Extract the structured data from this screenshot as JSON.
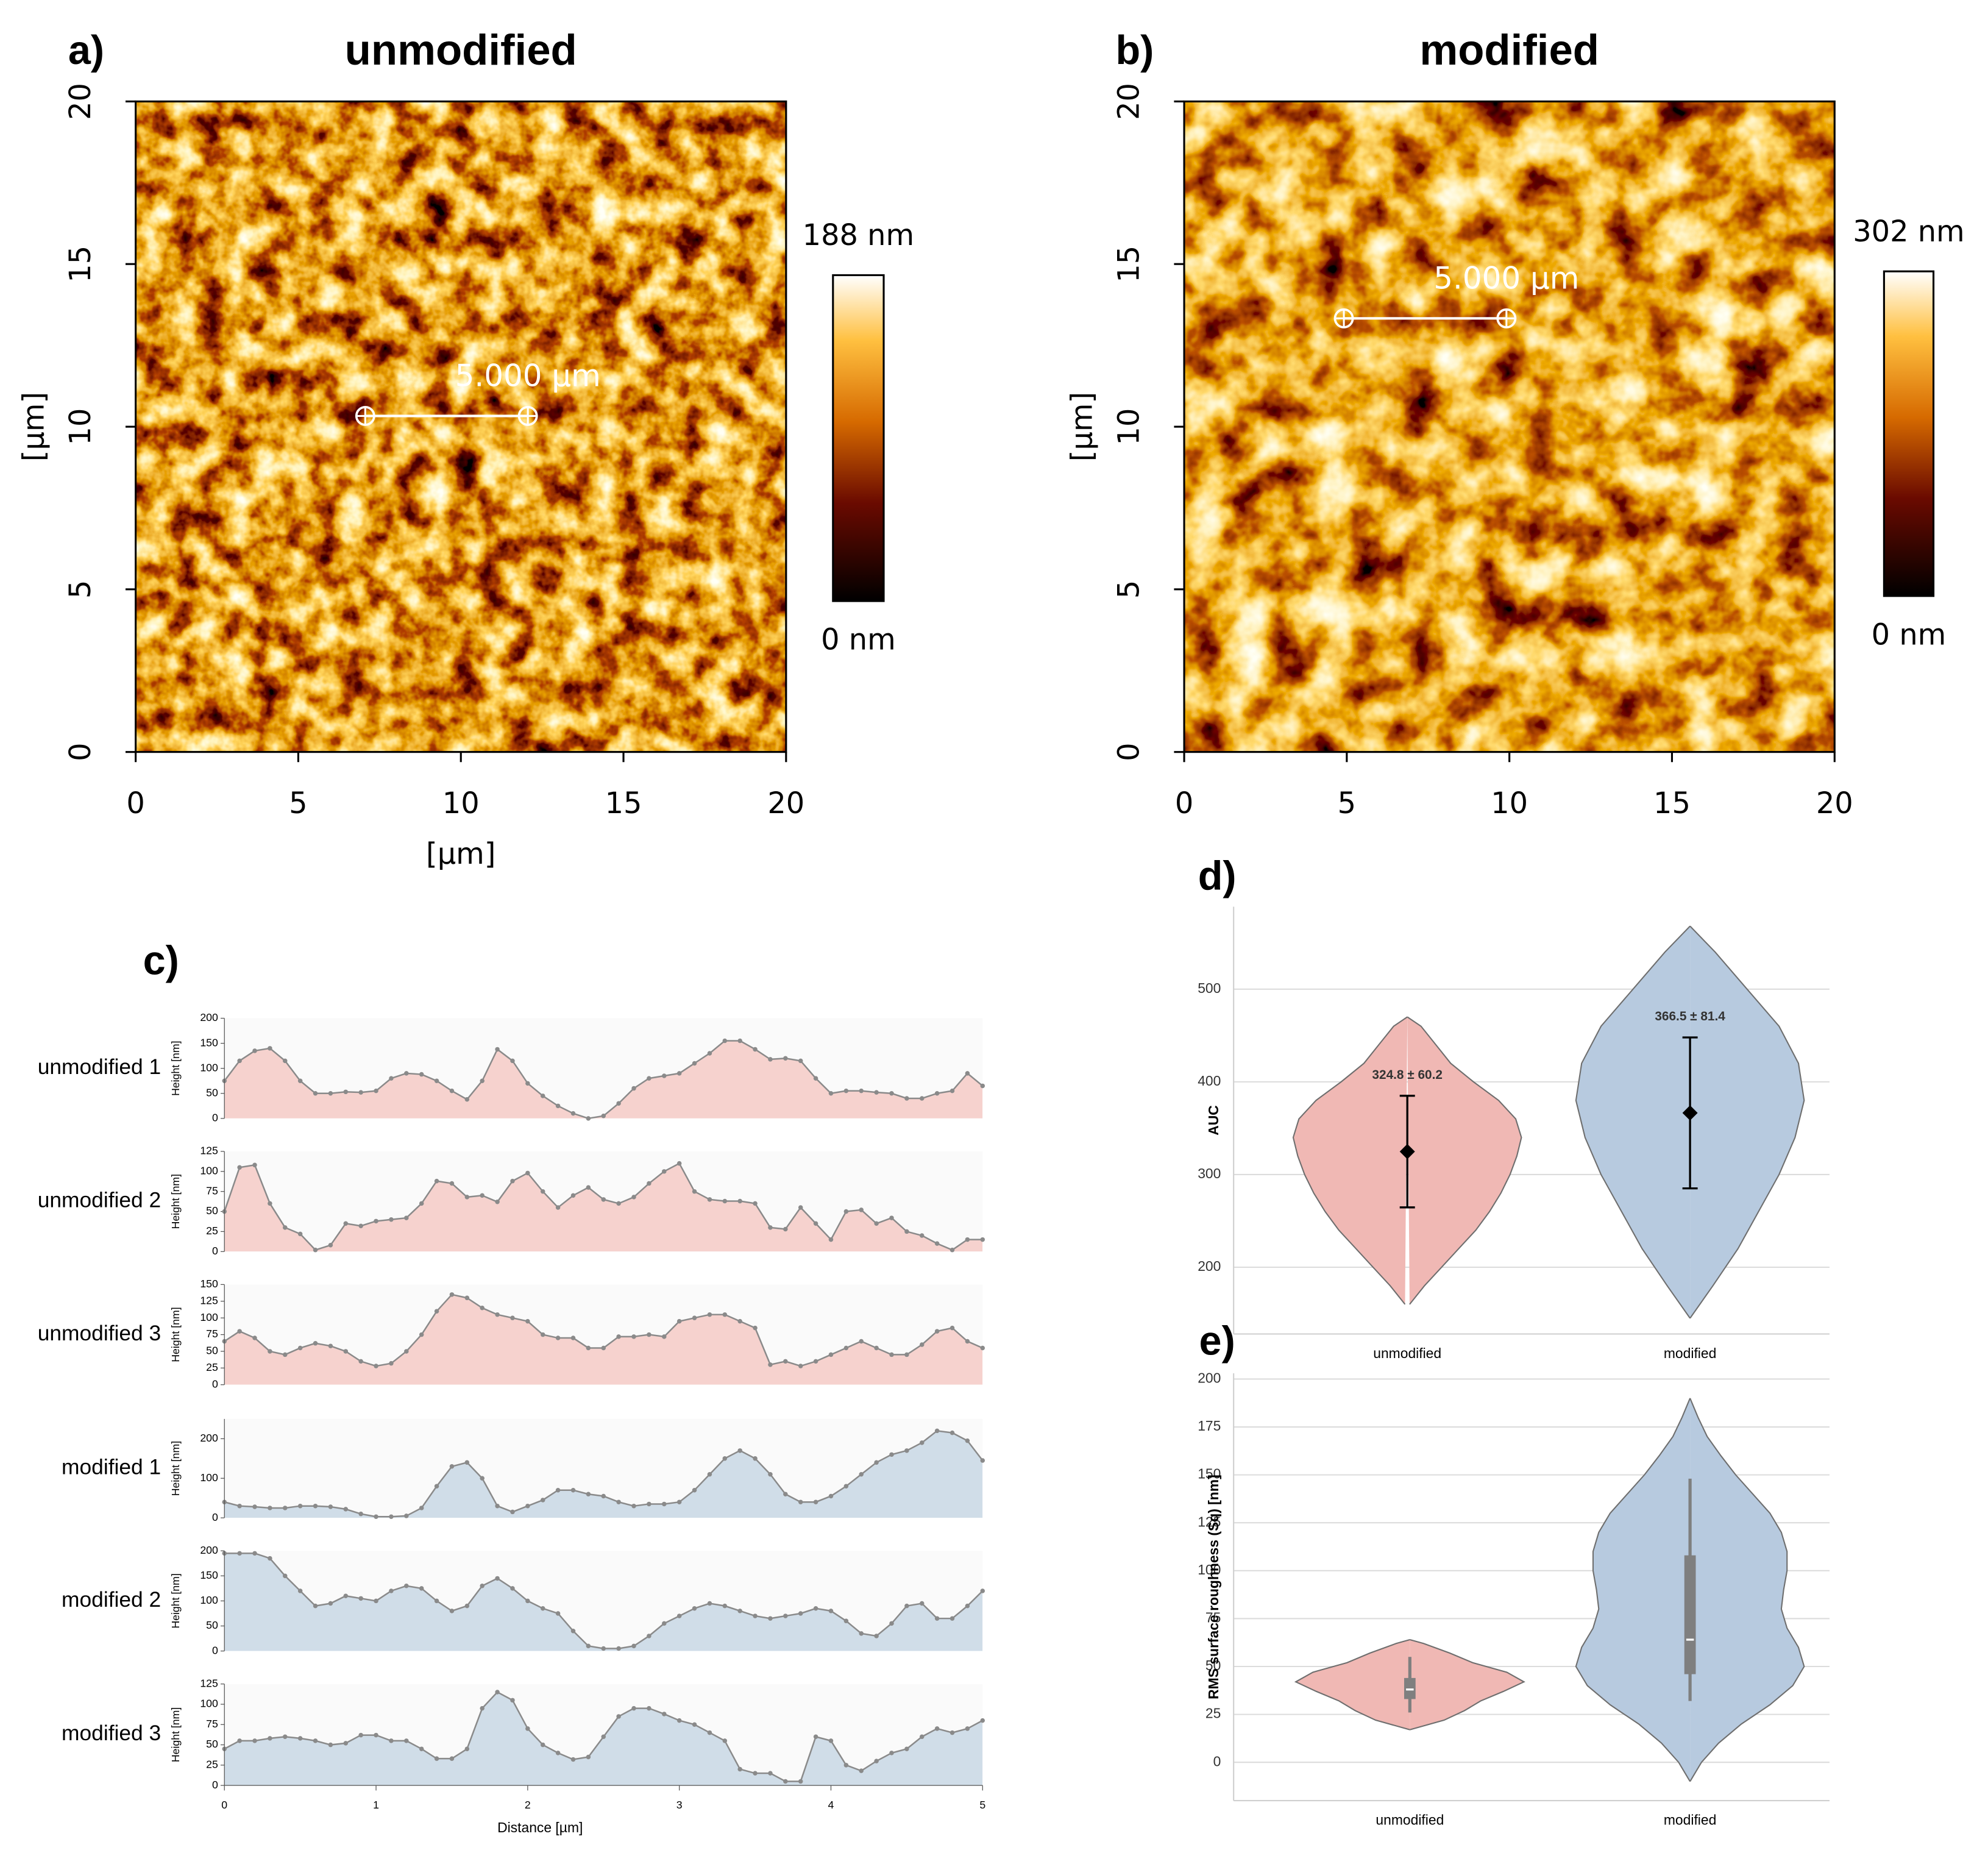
{
  "chart_data": [
    {
      "type": "heatmap",
      "panel_label": "a)",
      "title": "unmodified",
      "xlabel": "[µm]",
      "ylabel": "[µm]",
      "xlim": [
        0,
        20
      ],
      "ylim": [
        0,
        20
      ],
      "xticks": [
        0,
        5,
        10,
        15,
        20
      ],
      "yticks": [
        0,
        5,
        10,
        15,
        20
      ],
      "clim": [
        {
          "value": 0,
          "label": "0 nm"
        },
        {
          "value": 188,
          "label": "188 nm"
        }
      ],
      "scale_bar": {
        "x": 7.06,
        "y": 10.33,
        "length": 5,
        "label": "5.000 µm"
      }
    },
    {
      "type": "heatmap",
      "panel_label": "b)",
      "title": "modified",
      "ylabel": "[µm]",
      "xlim": [
        0,
        20
      ],
      "ylim": [
        0,
        20
      ],
      "xticks": [
        0,
        5,
        10,
        15,
        20
      ],
      "yticks": [
        0,
        5,
        10,
        15,
        20
      ],
      "clim": [
        {
          "value": 0,
          "label": "0 nm"
        },
        {
          "value": 302,
          "label": "302 nm"
        }
      ],
      "scale_bar": {
        "x": 4.91,
        "y": 13.33,
        "length": 5,
        "label": "5.000 µm"
      }
    },
    {
      "type": "area",
      "panel_label": "c)",
      "xlabel": "Distance [µm]",
      "ylabel": "Height [nm]",
      "line_color": "#8a8a8a",
      "xlim": [
        0,
        5
      ],
      "xticks": [
        0,
        1,
        2,
        3,
        4,
        5
      ],
      "x": [
        0,
        0.1,
        0.2,
        0.3,
        0.4,
        0.5,
        0.6,
        0.7,
        0.8,
        0.9,
        1,
        1.1,
        1.2,
        1.3,
        1.4,
        1.5,
        1.6,
        1.7,
        1.8,
        1.9,
        2,
        2.1,
        2.2,
        2.3,
        2.4,
        2.5,
        2.6,
        2.7,
        2.8,
        2.9,
        3,
        3.1,
        3.2,
        3.3,
        3.4,
        3.5,
        3.6,
        3.7,
        3.8,
        3.9,
        4,
        4.1,
        4.2,
        4.3,
        4.4,
        4.5,
        4.6,
        4.7,
        4.8,
        4.9,
        5
      ],
      "series": [
        {
          "name": "unmodified 1",
          "color": "#f6d2ce",
          "ylim": [
            0,
            200
          ],
          "yticks": [
            0,
            50,
            100,
            150,
            200
          ],
          "values": [
            75,
            115,
            135,
            140,
            115,
            75,
            50,
            50,
            53,
            52,
            55,
            80,
            90,
            88,
            75,
            55,
            38,
            75,
            138,
            115,
            70,
            45,
            25,
            10,
            0,
            5,
            30,
            60,
            80,
            85,
            90,
            110,
            130,
            155,
            155,
            138,
            118,
            120,
            115,
            80,
            50,
            55,
            55,
            52,
            50,
            40,
            40,
            50,
            55,
            90,
            65
          ]
        },
        {
          "name": "unmodified 2",
          "color": "#f6d2ce",
          "ylim": [
            0,
            125
          ],
          "yticks": [
            0,
            25,
            50,
            75,
            100,
            125
          ],
          "values": [
            50,
            105,
            108,
            60,
            30,
            22,
            2,
            8,
            35,
            32,
            38,
            40,
            42,
            60,
            88,
            85,
            68,
            70,
            62,
            88,
            98,
            75,
            55,
            70,
            80,
            65,
            60,
            68,
            85,
            100,
            110,
            75,
            65,
            63,
            63,
            60,
            30,
            28,
            55,
            35,
            15,
            50,
            52,
            35,
            42,
            25,
            20,
            10,
            2,
            15,
            15
          ]
        },
        {
          "name": "unmodified 3",
          "color": "#f6d2ce",
          "ylim": [
            0,
            150
          ],
          "yticks": [
            0,
            25,
            50,
            75,
            100,
            125,
            150
          ],
          "values": [
            65,
            80,
            70,
            50,
            45,
            55,
            62,
            58,
            50,
            35,
            28,
            32,
            50,
            75,
            110,
            135,
            130,
            115,
            105,
            100,
            95,
            75,
            70,
            70,
            55,
            55,
            72,
            72,
            75,
            72,
            95,
            100,
            105,
            105,
            95,
            85,
            30,
            35,
            28,
            35,
            45,
            55,
            65,
            55,
            45,
            45,
            60,
            80,
            85,
            65,
            55
          ]
        },
        {
          "name": "modified 1",
          "color": "#d0dde8",
          "ylim": [
            0,
            250
          ],
          "yticks": [
            0,
            100,
            200
          ],
          "values": [
            40,
            30,
            28,
            25,
            25,
            30,
            30,
            28,
            22,
            10,
            3,
            3,
            5,
            25,
            80,
            130,
            140,
            100,
            30,
            15,
            30,
            45,
            70,
            70,
            60,
            55,
            40,
            30,
            35,
            35,
            40,
            70,
            110,
            150,
            170,
            150,
            110,
            60,
            40,
            40,
            55,
            80,
            110,
            140,
            160,
            170,
            190,
            220,
            215,
            195,
            145
          ]
        },
        {
          "name": "modified 2",
          "color": "#d0dde8",
          "ylim": [
            0,
            200
          ],
          "yticks": [
            0,
            50,
            100,
            150,
            200
          ],
          "values": [
            195,
            195,
            195,
            185,
            150,
            120,
            90,
            95,
            110,
            105,
            100,
            120,
            130,
            125,
            100,
            80,
            90,
            130,
            145,
            125,
            100,
            85,
            75,
            40,
            10,
            5,
            5,
            10,
            30,
            55,
            70,
            85,
            95,
            90,
            80,
            70,
            65,
            70,
            75,
            85,
            80,
            60,
            35,
            30,
            55,
            90,
            95,
            65,
            65,
            90,
            120
          ]
        },
        {
          "name": "modified 3",
          "color": "#d0dde8",
          "ylim": [
            0,
            125
          ],
          "yticks": [
            0,
            25,
            50,
            75,
            100,
            125
          ],
          "values": [
            45,
            55,
            55,
            58,
            60,
            58,
            55,
            50,
            52,
            62,
            62,
            55,
            55,
            45,
            33,
            33,
            45,
            95,
            115,
            105,
            70,
            50,
            40,
            32,
            35,
            60,
            85,
            95,
            95,
            88,
            80,
            75,
            65,
            55,
            20,
            15,
            15,
            5,
            5,
            60,
            55,
            25,
            18,
            30,
            40,
            45,
            60,
            70,
            65,
            70,
            80
          ]
        }
      ]
    },
    {
      "type": "violin",
      "panel_label": "d)",
      "ylabel": "AUC",
      "categories": [
        "unmodified",
        "modified"
      ],
      "colors": [
        "#f0b8b4",
        "#b7cadf"
      ],
      "ylim": [
        128,
        589
      ],
      "yticks": [
        200,
        300,
        400,
        500
      ],
      "violins": [
        {
          "levels": [
            160,
            180,
            200,
            220,
            240,
            260,
            280,
            300,
            320,
            340,
            360,
            380,
            400,
            420,
            440,
            460,
            470
          ],
          "widths": [
            0.02,
            0.15,
            0.3,
            0.45,
            0.6,
            0.72,
            0.82,
            0.9,
            0.96,
            1.0,
            0.95,
            0.8,
            0.58,
            0.38,
            0.25,
            0.12,
            0.0
          ]
        },
        {
          "levels": [
            145,
            180,
            220,
            260,
            300,
            340,
            380,
            420,
            460,
            500,
            540,
            568
          ],
          "widths": [
            0.0,
            0.2,
            0.42,
            0.6,
            0.78,
            0.92,
            1.0,
            0.95,
            0.78,
            0.5,
            0.22,
            0.0
          ]
        }
      ],
      "means": [
        324.8,
        366.5
      ],
      "errors": [
        60.2,
        81.4
      ],
      "value_labels": [
        "324.8 ± 60.2",
        "366.5 ± 81.4"
      ]
    },
    {
      "type": "violin",
      "panel_label": "e)",
      "ylabel": "RMS surface roughness (Sq) [nm]",
      "categories": [
        "unmodified",
        "modified"
      ],
      "colors": [
        "#f0b8b4",
        "#b7cadf"
      ],
      "ylim": [
        -20,
        203
      ],
      "yticks": [
        0,
        25,
        50,
        75,
        100,
        125,
        150,
        175,
        200
      ],
      "violins": [
        {
          "levels": [
            17,
            22,
            27,
            32,
            37,
            42,
            47,
            52,
            57,
            62,
            64
          ],
          "widths": [
            0,
            0.3,
            0.48,
            0.62,
            0.82,
            1.0,
            0.85,
            0.55,
            0.35,
            0.12,
            0
          ]
        },
        {
          "levels": [
            -10,
            0,
            10,
            20,
            30,
            40,
            50,
            60,
            70,
            80,
            90,
            100,
            110,
            120,
            130,
            140,
            150,
            160,
            170,
            180,
            190
          ],
          "widths": [
            0,
            0.1,
            0.25,
            0.45,
            0.7,
            0.9,
            1.0,
            0.95,
            0.85,
            0.8,
            0.82,
            0.85,
            0.85,
            0.8,
            0.7,
            0.55,
            0.4,
            0.27,
            0.15,
            0.07,
            0
          ]
        }
      ],
      "boxes": [
        {
          "whislo": 26,
          "q1": 33,
          "med": 38,
          "q3": 44,
          "whishi": 55
        },
        {
          "whislo": 32,
          "q1": 46,
          "med": 64,
          "q3": 108,
          "whishi": 148
        }
      ]
    }
  ]
}
